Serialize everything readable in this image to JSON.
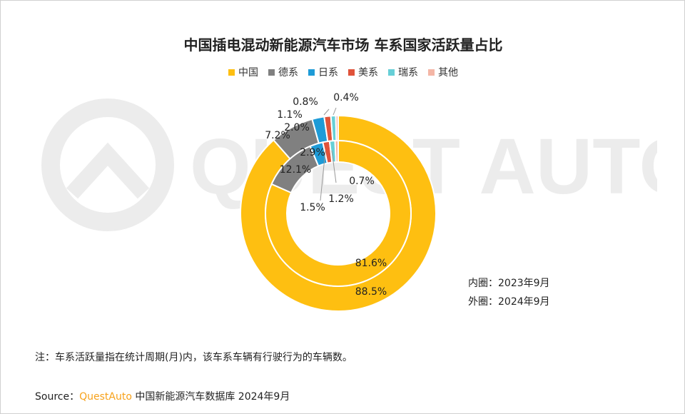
{
  "title": "中国插电混动新能源汽车市场 车系国家活跃量占比",
  "legend": [
    {
      "label": "中国",
      "color": "#FEBF11"
    },
    {
      "label": "德系",
      "color": "#808080"
    },
    {
      "label": "日系",
      "color": "#1E9BD7"
    },
    {
      "label": "美系",
      "color": "#E0533A"
    },
    {
      "label": "瑞系",
      "color": "#67CFD7"
    },
    {
      "label": "其他",
      "color": "#F4B6A6"
    }
  ],
  "ring_legend": {
    "inner": "内圈：2023年9月",
    "outer": "外圈：2024年9月"
  },
  "note": "注：车系活跃量指在统计周期(月)内，该车系车辆有行驶行为的车辆数。",
  "source": {
    "prefix": "Source：",
    "brand": "QuestAuto",
    "suffix": " 中国新能源汽车数据库 2024年9月"
  },
  "watermark": "QUEST AUTO",
  "chart_data": {
    "type": "pie",
    "subtype": "nested-donut",
    "categories": [
      "中国",
      "德系",
      "日系",
      "美系",
      "瑞系",
      "其他"
    ],
    "series": [
      {
        "name": "外圈：2024年9月",
        "values": [
          88.5,
          7.2,
          2.0,
          1.1,
          0.8,
          0.4
        ],
        "labels": [
          "88.5%",
          "7.2%",
          "2.0%",
          "1.1%",
          "0.8%",
          "0.4%"
        ]
      },
      {
        "name": "内圈：2023年9月",
        "values": [
          81.6,
          12.1,
          2.9,
          1.5,
          1.2,
          0.7
        ],
        "labels": [
          "81.6%",
          "12.1%",
          "2.9%",
          "1.5%",
          "1.2%",
          "0.7%"
        ]
      }
    ]
  }
}
